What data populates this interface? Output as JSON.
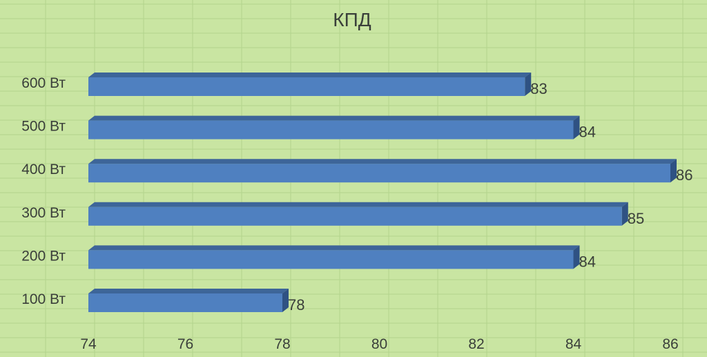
{
  "chart_data": {
    "type": "bar",
    "orientation": "horizontal",
    "style": "3d",
    "title": "КПД",
    "categories": [
      "600 Вт",
      "500 Вт",
      "400 Вт",
      "300 Вт",
      "200 Вт",
      "100 Вт"
    ],
    "values": [
      83,
      84,
      86,
      85,
      84,
      78
    ],
    "data_labels": [
      "83",
      "84",
      "86",
      "85",
      "84",
      "78"
    ],
    "x_ticks": [
      "74",
      "76",
      "78",
      "80",
      "82",
      "84",
      "86"
    ],
    "xlim": [
      74,
      86
    ],
    "xlabel": "",
    "ylabel": "",
    "legend": "none",
    "colors": {
      "bar": "#4f80c0",
      "bar_top": "#3d6599",
      "bar_side": "#2f5283",
      "background": "#c9e5a2",
      "text": "#3a3f3a"
    }
  }
}
